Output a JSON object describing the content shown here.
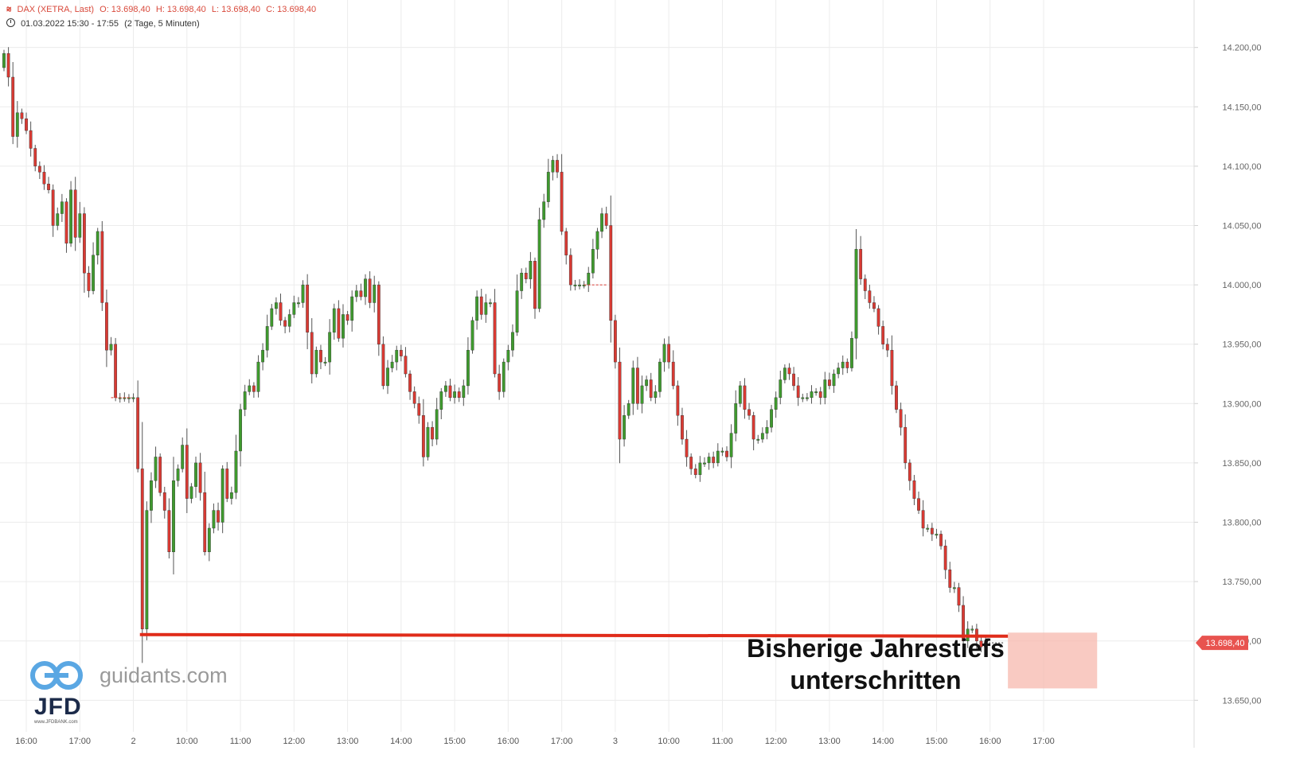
{
  "header": {
    "line1": [
      "DAX (XETRA, Last)",
      "O: 13.698,40",
      "H: 13.698,40",
      "L: 13.698,40",
      "C: 13.698,40"
    ],
    "line2": [
      "01.03.2022 15:30 - 17:55",
      "(2 Tage, 5 Minuten)"
    ]
  },
  "annotation": {
    "line1": "Bisherige Jahrestiefs",
    "line2": "unterschritten"
  },
  "watermark": {
    "site": "guidants.com",
    "brand": "JFD",
    "brand_small": "www.JFDBANK.com"
  },
  "last_price_label": "13.698,40",
  "colors": {
    "up": "#3f9a2e",
    "down": "#d93a33",
    "support_line": "#e02c1a",
    "zone_fill": "#f7b8ad",
    "price_tag": "#e8534f"
  },
  "chart_data": {
    "type": "candlestick",
    "title": "DAX (XETRA, Last)",
    "ylim": [
      13610,
      14240
    ],
    "y_ticks": [
      {
        "v": 14200,
        "label": "14.200,00"
      },
      {
        "v": 14150,
        "label": "14.150,00"
      },
      {
        "v": 14100,
        "label": "14.100,00"
      },
      {
        "v": 14050,
        "label": "14.050,00"
      },
      {
        "v": 14000,
        "label": "14.000,00"
      },
      {
        "v": 13950,
        "label": "13.950,00"
      },
      {
        "v": 13900,
        "label": "13.900,00"
      },
      {
        "v": 13850,
        "label": "13.850,00"
      },
      {
        "v": 13800,
        "label": "13.800,00"
      },
      {
        "v": 13750,
        "label": "13.750,00"
      },
      {
        "v": 13700,
        "label": "13.700,00"
      },
      {
        "v": 13650,
        "label": "13.650,00"
      }
    ],
    "x_ticks": [
      {
        "i": 5,
        "label": "16:00"
      },
      {
        "i": 17,
        "label": "17:00"
      },
      {
        "i": 29,
        "label": "2"
      },
      {
        "i": 41,
        "label": "10:00"
      },
      {
        "i": 53,
        "label": "11:00"
      },
      {
        "i": 65,
        "label": "12:00"
      },
      {
        "i": 77,
        "label": "13:00"
      },
      {
        "i": 89,
        "label": "14:00"
      },
      {
        "i": 101,
        "label": "15:00"
      },
      {
        "i": 113,
        "label": "16:00"
      },
      {
        "i": 125,
        "label": "17:00"
      },
      {
        "i": 137,
        "label": "3"
      },
      {
        "i": 149,
        "label": "10:00"
      },
      {
        "i": 161,
        "label": "11:00"
      },
      {
        "i": 173,
        "label": "12:00"
      },
      {
        "i": 185,
        "label": "13:00"
      },
      {
        "i": 197,
        "label": "14:00"
      },
      {
        "i": 209,
        "label": "15:00"
      },
      {
        "i": 221,
        "label": "16:00"
      },
      {
        "i": 233,
        "label": "17:00"
      }
    ],
    "support_level": 13705,
    "zone": {
      "from_i": 225,
      "to_i": 245,
      "low": 13660,
      "high": 13707
    },
    "last_price": 13698.4,
    "closes": [
      14195,
      14175,
      14125,
      14145,
      14140,
      14130,
      14115,
      14100,
      14095,
      14085,
      14080,
      14050,
      14060,
      14070,
      14035,
      14080,
      14040,
      14060,
      14010,
      13995,
      14025,
      14045,
      13985,
      13945,
      13950,
      13905,
      13905,
      13905,
      13905,
      13905,
      13845,
      13710,
      13810,
      13835,
      13855,
      13825,
      13810,
      13775,
      13835,
      13845,
      13865,
      13820,
      13830,
      13850,
      13825,
      13775,
      13795,
      13810,
      13800,
      13845,
      13820,
      13825,
      13860,
      13895,
      13910,
      13915,
      13910,
      13935,
      13945,
      13965,
      13980,
      13985,
      13970,
      13965,
      13975,
      13985,
      13985,
      14000,
      13960,
      13925,
      13945,
      13935,
      13935,
      13960,
      13980,
      13955,
      13975,
      13970,
      13990,
      13995,
      13990,
      14005,
      13985,
      14000,
      13950,
      13915,
      13930,
      13935,
      13945,
      13940,
      13925,
      13910,
      13900,
      13890,
      13855,
      13880,
      13870,
      13895,
      13910,
      13915,
      13905,
      13910,
      13905,
      13915,
      13945,
      13970,
      13990,
      13975,
      13985,
      13985,
      13925,
      13910,
      13935,
      13945,
      13960,
      13995,
      14010,
      14005,
      14020,
      13980,
      14055,
      14070,
      14095,
      14105,
      14095,
      14045,
      14025,
      14000,
      14000,
      14000,
      14000,
      14010,
      14030,
      14045,
      14060,
      14050,
      13970,
      13935,
      13870,
      13890,
      13900,
      13930,
      13900,
      13915,
      13920,
      13905,
      13910,
      13935,
      13950,
      13935,
      13915,
      13890,
      13870,
      13855,
      13845,
      13840,
      13850,
      13850,
      13855,
      13850,
      13860,
      13860,
      13855,
      13875,
      13900,
      13915,
      13895,
      13890,
      13870,
      13870,
      13875,
      13880,
      13895,
      13905,
      13920,
      13930,
      13925,
      13915,
      13905,
      13905,
      13905,
      13910,
      13910,
      13905,
      13920,
      13915,
      13925,
      13930,
      13935,
      13930,
      13955,
      14030,
      14005,
      13995,
      13985,
      13980,
      13965,
      13950,
      13945,
      13915,
      13895,
      13880,
      13850,
      13835,
      13820,
      13810,
      13795,
      13795,
      13790,
      13790,
      13780,
      13760,
      13745,
      13745,
      13730,
      13700,
      13710,
      13710,
      13700,
      13695,
      13698.4
    ]
  }
}
